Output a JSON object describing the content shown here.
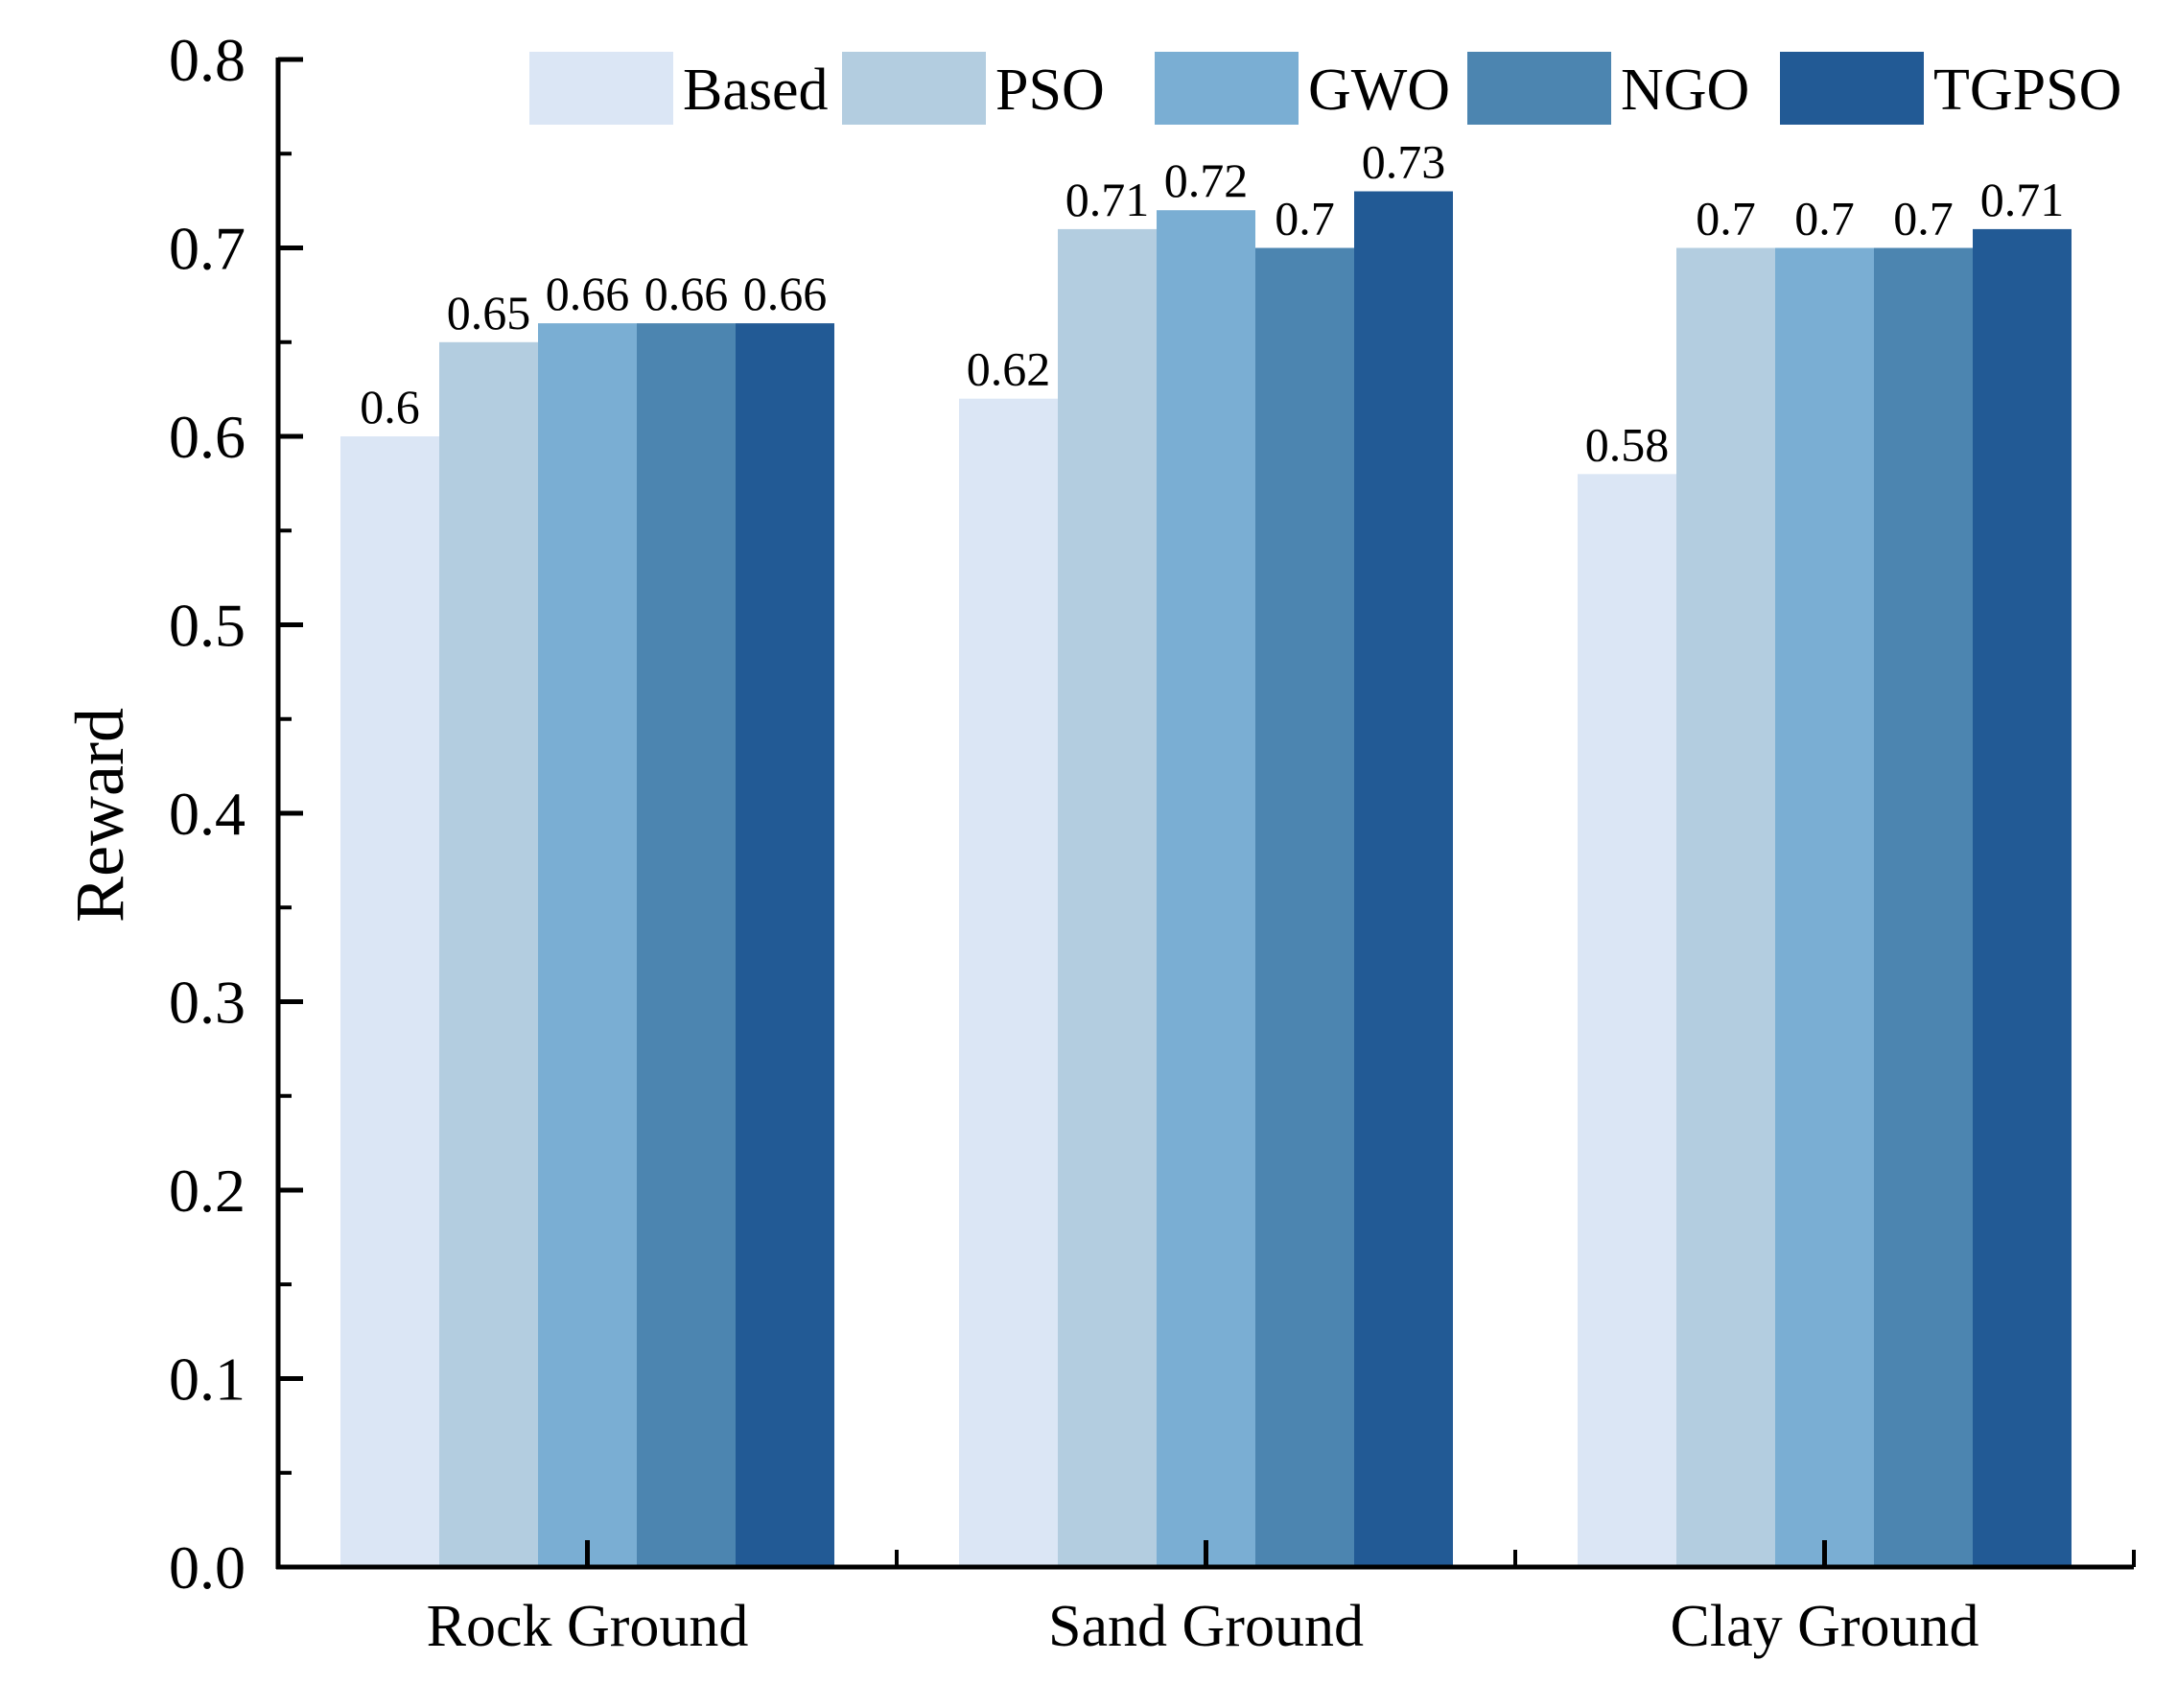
{
  "chart_data": {
    "type": "bar",
    "title": "",
    "xlabel": "",
    "ylabel": "Reward",
    "ylim": [
      0,
      0.8
    ],
    "yticks": [
      "0.0",
      "0.1",
      "0.2",
      "0.3",
      "0.4",
      "0.5",
      "0.6",
      "0.7",
      "0.8"
    ],
    "categories": [
      "Rock Ground",
      "Sand Ground",
      "Clay Ground"
    ],
    "legend_position": "top-right",
    "grid": false,
    "series": [
      {
        "name": "Based",
        "color": "#dbe6f5",
        "values": [
          0.6,
          0.62,
          0.58
        ],
        "labels": [
          "0.6",
          "0.62",
          "0.58"
        ]
      },
      {
        "name": "PSO",
        "color": "#b3cde0",
        "values": [
          0.65,
          0.71,
          0.7
        ],
        "labels": [
          "0.65",
          "0.71",
          "0.7"
        ]
      },
      {
        "name": "GWO",
        "color": "#7aaed3",
        "values": [
          0.66,
          0.72,
          0.7
        ],
        "labels": [
          "0.66",
          "0.72",
          "0.7"
        ]
      },
      {
        "name": "NGO",
        "color": "#4c85b0",
        "values": [
          0.66,
          0.7,
          0.7
        ],
        "labels": [
          "0.66",
          "0.7",
          "0.7"
        ]
      },
      {
        "name": "TGPSO",
        "color": "#225a95",
        "values": [
          0.66,
          0.73,
          0.71
        ],
        "labels": [
          "0.66",
          "0.73",
          "0.71"
        ]
      }
    ]
  }
}
